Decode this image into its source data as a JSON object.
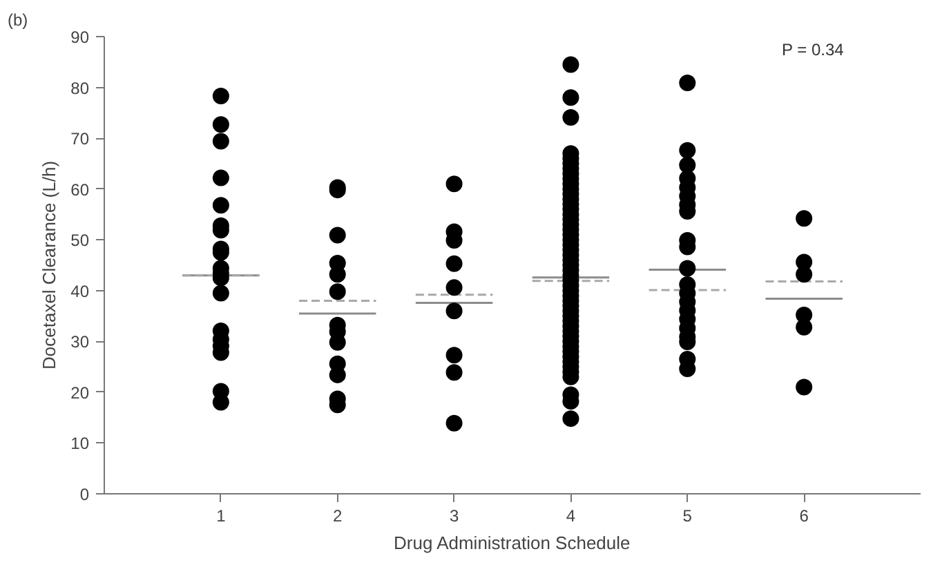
{
  "chart_data": {
    "type": "scatter",
    "title": "(b)",
    "xlabel": "Drug Administration Schedule",
    "ylabel": "Docetaxel Clearance (L/h)",
    "annotations": [
      "P = 0.34"
    ],
    "xlim": [
      0,
      7
    ],
    "xticks": [
      1,
      2,
      3,
      4,
      5,
      6
    ],
    "ylim": [
      0,
      90
    ],
    "yticks": [
      0,
      10,
      20,
      30,
      40,
      50,
      60,
      70,
      80,
      90
    ],
    "grid": false,
    "series": [
      {
        "type": "scatter",
        "marker": "circle",
        "color": "#000000",
        "x": [
          1,
          1,
          1,
          1,
          1,
          1,
          1,
          1,
          1,
          1,
          1,
          1,
          1,
          1,
          1,
          1,
          1,
          1,
          1,
          2,
          2,
          2,
          2,
          2,
          2,
          2,
          2,
          2,
          2,
          2,
          2,
          2,
          3,
          3,
          3,
          3,
          3,
          3,
          3,
          3,
          3,
          4,
          4,
          4,
          4,
          4,
          4,
          4,
          4,
          4,
          4,
          4,
          4,
          4,
          4,
          4,
          4,
          4,
          4,
          4,
          4,
          4,
          4,
          4,
          4,
          4,
          4,
          4,
          4,
          4,
          4,
          4,
          4,
          4,
          4,
          4,
          4,
          4,
          4,
          4,
          4,
          4,
          4,
          4,
          4,
          4,
          4,
          4,
          4,
          4,
          4,
          4,
          5,
          5,
          5,
          5,
          5,
          5,
          5,
          5,
          5,
          5,
          5,
          5,
          5,
          5,
          5,
          5,
          5,
          5,
          5,
          5,
          5,
          6,
          6,
          6,
          6,
          6,
          6
        ],
        "values": [
          78.3,
          72.7,
          69.4,
          62.2,
          56.8,
          52.8,
          51.9,
          48.2,
          47.5,
          44.4,
          43.4,
          42.5,
          39.5,
          32.1,
          30.4,
          29.1,
          27.8,
          20.2,
          18.0,
          60.3,
          59.8,
          50.9,
          45.4,
          43.2,
          39.8,
          33.2,
          31.9,
          29.8,
          25.6,
          23.4,
          18.7,
          17.5,
          61.0,
          51.6,
          49.9,
          45.3,
          40.6,
          36.0,
          27.3,
          23.9,
          13.9,
          84.5,
          78.0,
          74.1,
          67.0,
          66,
          65,
          64,
          63,
          62,
          61,
          60,
          59,
          58,
          57,
          56,
          55,
          54,
          53,
          52,
          51,
          50,
          49,
          48,
          47,
          46,
          45,
          44,
          43,
          42,
          41,
          40,
          39,
          38,
          37,
          36,
          35,
          34,
          33,
          32,
          31,
          30,
          29,
          28,
          27,
          26,
          25,
          24,
          23,
          19.5,
          18.2,
          14.8,
          80.9,
          67.6,
          64.7,
          62.1,
          60.3,
          58.6,
          56.9,
          55.6,
          49.9,
          48.6,
          44.4,
          41.2,
          39.5,
          37.8,
          36.1,
          34.4,
          32.6,
          30.9,
          29.9,
          26.5,
          24.6,
          54.2,
          45.6,
          43.2,
          35.2,
          32.8,
          21.0
        ]
      },
      {
        "type": "line",
        "line_style": "solid",
        "color": "#8c8c8c",
        "x": [
          0.67,
          1.33,
          1.5,
          1.67,
          2.33,
          2.5,
          2.67,
          3.33,
          3.5,
          3.67,
          4.33,
          4.5,
          4.67,
          5.33,
          5.5,
          5.67,
          6.33
        ],
        "values": [
          43.0,
          43.0,
          null,
          35.5,
          35.5,
          null,
          37.6,
          37.6,
          null,
          42.6,
          42.6,
          null,
          44.1,
          44.1,
          null,
          38.4,
          38.4
        ]
      },
      {
        "type": "line",
        "line_style": "dashed",
        "color": "#a8a8a8",
        "x": [
          0.67,
          1.33,
          1.5,
          1.67,
          2.33,
          2.5,
          2.67,
          3.33,
          3.5,
          3.67,
          4.33,
          4.5,
          4.67,
          5.33,
          5.5,
          5.67,
          6.33
        ],
        "values": [
          43.0,
          43.0,
          null,
          38.0,
          38.0,
          null,
          39.2,
          39.2,
          null,
          41.9,
          41.9,
          null,
          40.1,
          40.1,
          null,
          41.8,
          41.8
        ]
      }
    ]
  }
}
